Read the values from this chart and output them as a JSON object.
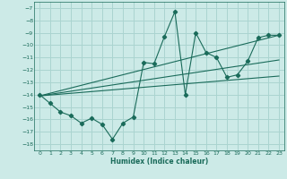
{
  "xlabel": "Humidex (Indice chaleur)",
  "bg_color": "#cceae7",
  "grid_color": "#aad4d0",
  "line_color": "#1a6b5a",
  "xlim": [
    -0.5,
    23.5
  ],
  "ylim": [
    -18.5,
    -6.5
  ],
  "yticks": [
    -7,
    -8,
    -9,
    -10,
    -11,
    -12,
    -13,
    -14,
    -15,
    -16,
    -17,
    -18
  ],
  "xticks": [
    0,
    1,
    2,
    3,
    4,
    5,
    6,
    7,
    8,
    9,
    10,
    11,
    12,
    13,
    14,
    15,
    16,
    17,
    18,
    19,
    20,
    21,
    22,
    23
  ],
  "line1_x": [
    0,
    1,
    2,
    3,
    4,
    5,
    6,
    7,
    8,
    9,
    10,
    11,
    12,
    13,
    14,
    15,
    16,
    17,
    18,
    19,
    20,
    21,
    22,
    23
  ],
  "line1_y": [
    -14.0,
    -14.7,
    -15.4,
    -15.7,
    -16.3,
    -15.9,
    -16.4,
    -17.6,
    -16.3,
    -15.8,
    -11.4,
    -11.5,
    -9.3,
    -7.3,
    -14.0,
    -9.0,
    -10.6,
    -11.0,
    -12.6,
    -12.4,
    -11.3,
    -9.4,
    -9.2,
    -9.2
  ],
  "line2_x": [
    0,
    23
  ],
  "line2_y": [
    -14.1,
    -9.2
  ],
  "line3_x": [
    0,
    23
  ],
  "line3_y": [
    -14.1,
    -12.5
  ],
  "line4_x": [
    0,
    23
  ],
  "line4_y": [
    -14.1,
    -11.2
  ]
}
